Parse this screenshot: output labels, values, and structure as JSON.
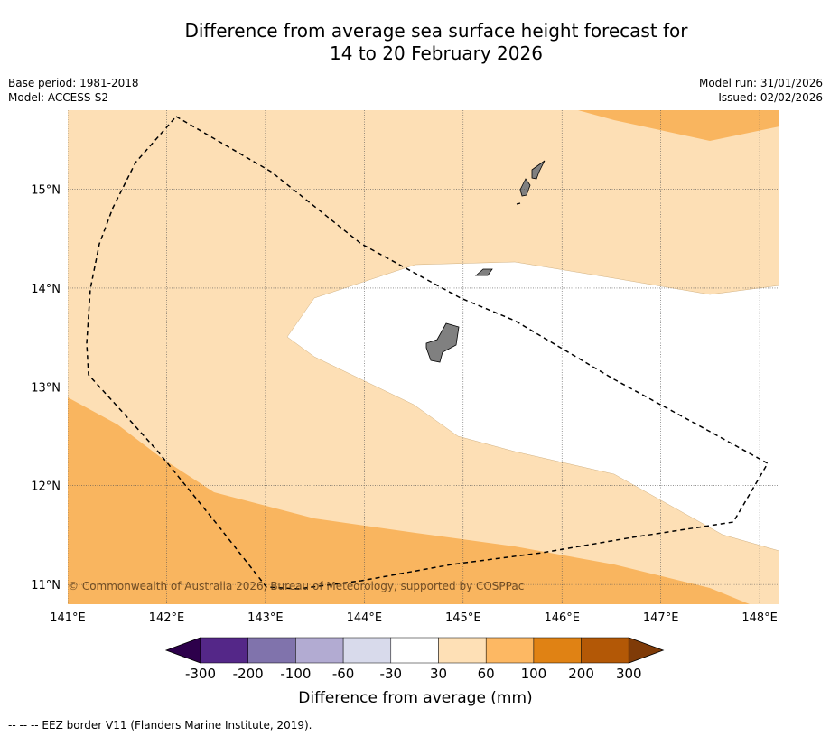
{
  "title": {
    "line1": "Difference from average sea surface height forecast for",
    "line2": "14 to 20 February 2026"
  },
  "meta_left": {
    "base_period": "Base period: 1981-2018",
    "model": "Model: ACCESS-S2"
  },
  "meta_right": {
    "model_run": "Model run: 31/01/2026",
    "issued": "Issued: 02/02/2026"
  },
  "map": {
    "lon_ticks": [
      "141°E",
      "142°E",
      "143°E",
      "144°E",
      "145°E",
      "146°E",
      "147°E",
      "148°E"
    ],
    "lat_ticks": [
      "15°N",
      "14°N",
      "13°N",
      "12°N",
      "11°N"
    ],
    "lon_values": [
      141,
      142,
      143,
      144,
      145,
      146,
      147,
      148
    ],
    "lat_values": [
      15,
      14,
      13,
      12,
      11
    ],
    "extent": {
      "lon_min": 141,
      "lon_max": 148.2,
      "lat_min": 10.8,
      "lat_max": 15.8
    },
    "copyright": "© Commonwealth of Australia 2026, Bureau of Meteorology, supported by COSPPac",
    "fill_colors": {
      "band_30_60": "#fddfb5",
      "band_60_100": "#f9b55f",
      "band_neutral": "#ffffff",
      "land": "#808080"
    }
  },
  "legend": {
    "colors": [
      "#2d004b",
      "#542788",
      "#8073ac",
      "#b2abd2",
      "#d8daeb",
      "#ffffff",
      "#fee0b6",
      "#fdb863",
      "#e08214",
      "#b35806",
      "#7f3b08"
    ],
    "tick_labels": [
      "-300",
      "-200",
      "-100",
      "-60",
      "-30",
      "30",
      "60",
      "100",
      "200",
      "300"
    ],
    "label": "Difference from average (mm)"
  },
  "footnote": "--  --  -- EEZ border V11 (Flanders Marine Institute, 2019)."
}
